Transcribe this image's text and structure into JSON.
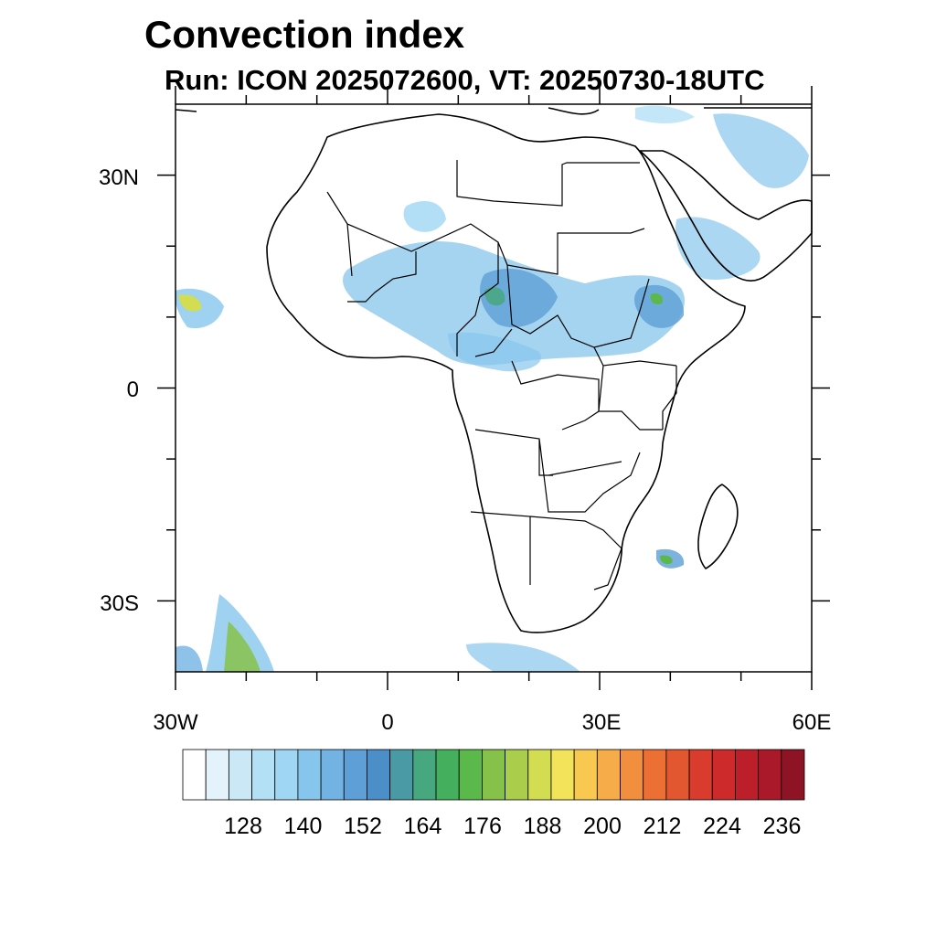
{
  "header": {
    "title": "Convection index",
    "subtitle": "Run: ICON 2025072600,  VT: 20250730-18UTC"
  },
  "map": {
    "lon_range": [
      -30,
      60
    ],
    "lat_range": [
      -40,
      40
    ],
    "y_axis_labels": [
      "30N",
      "0",
      "30S"
    ],
    "x_axis_labels": [
      "30W",
      "0",
      "30E",
      "60E"
    ]
  },
  "colorbar": {
    "levels": [
      "128",
      "140",
      "152",
      "164",
      "176",
      "188",
      "200",
      "212",
      "224",
      "236"
    ],
    "colors": [
      "#ffffff",
      "#e4f3fb",
      "#cbe8f7",
      "#b4e0f6",
      "#9fd6f4",
      "#87c6ec",
      "#73b3e3",
      "#5d9fd6",
      "#4c8ec8",
      "#4a9aa6",
      "#47a77f",
      "#44b05e",
      "#5bb94b",
      "#86c24a",
      "#aacd4c",
      "#d3dd52",
      "#f2e35b",
      "#f8c851",
      "#f6ad49",
      "#f28f3e",
      "#ec6f34",
      "#e25630",
      "#d93b2d",
      "#cd2a2c",
      "#bd1f2a",
      "#a9192a",
      "#8e1425"
    ]
  }
}
